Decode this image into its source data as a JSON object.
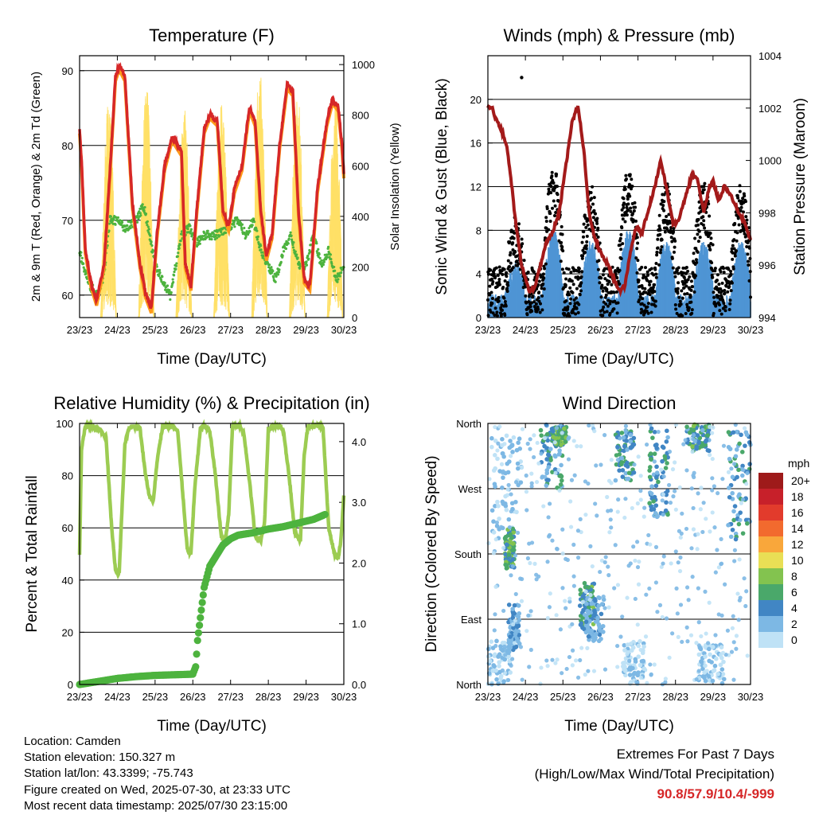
{
  "colors": {
    "temp_red": "#d62728",
    "temp_orange": "#ff9b1a",
    "dewpoint_green": "#4db33e",
    "solar_yellow": "#ffe066",
    "gust_black": "#000000",
    "wind_blue": "#4f95d4",
    "pressure_maroon": "#a31a1a",
    "rh_lightgreen": "#9ccc52",
    "rain_green": "#4db33e",
    "extremes_red": "#d62728"
  },
  "footer": {
    "location": "Location: Camden",
    "elevation": "Station elevation: 150.327 m",
    "latlon": "Station lat/lon: 43.3399; -75.743",
    "created": "Figure created on Wed, 2025-07-30, at 23:33 UTC",
    "latest": "Most recent data timestamp: 2025/07/30 23:15:00"
  },
  "extremes": {
    "title": "Extremes For Past 7 Days",
    "subtitle": "(High/Low/Max Wind/Total Precipitation)",
    "values": "90.8/57.9/10.4/-999"
  },
  "chart_data": [
    {
      "id": "temperature",
      "type": "line",
      "title": "Temperature (F)",
      "xlabel": "Time (Day/UTC)",
      "ylabel": "2m & 9m T (Red, Orange) & 2m Td (Green)",
      "y2label": "Solar Insolation (Yellow)",
      "x_ticks": [
        "23/23",
        "24/23",
        "25/23",
        "26/23",
        "27/23",
        "28/23",
        "29/23",
        "30/23"
      ],
      "xlim": [
        0,
        7
      ],
      "ylim": [
        57,
        92
      ],
      "y_ticks": [
        60,
        70,
        80,
        90
      ],
      "y2lim": [
        0,
        1035
      ],
      "y2_ticks": [
        0,
        200,
        400,
        600,
        800,
        1000
      ],
      "grid": true,
      "series": [
        {
          "role": "air_temperature",
          "x": [
            0,
            0.05,
            0.15,
            0.3,
            0.45,
            0.65,
            0.8,
            0.95,
            1.05,
            1.2,
            1.4,
            1.6,
            1.75,
            1.9,
            2.05,
            2.25,
            2.45,
            2.7,
            2.8,
            2.95,
            3.1,
            3.3,
            3.45,
            3.65,
            3.8,
            3.95,
            4.1,
            4.3,
            4.5,
            4.65,
            4.8,
            4.95,
            5.1,
            5.3,
            5.5,
            5.65,
            5.8,
            5.95,
            6.1,
            6.3,
            6.55,
            6.7,
            6.85,
            6.95,
            7
          ],
          "values": [
            82,
            78,
            66,
            61.5,
            59,
            64,
            76,
            89,
            90.5,
            89,
            72,
            64,
            60,
            58,
            68,
            77,
            81,
            79,
            64,
            61,
            71,
            82,
            84,
            83,
            71,
            69,
            74,
            77,
            85,
            83,
            71,
            65,
            68,
            80,
            88,
            87,
            71,
            62,
            61,
            74,
            83,
            86,
            85,
            80,
            76
          ]
        },
        {
          "role": "dewpoint",
          "x": [
            0,
            0.1,
            0.3,
            0.5,
            0.65,
            0.8,
            1.0,
            1.2,
            1.5,
            1.7,
            2.0,
            2.2,
            2.4,
            2.7,
            2.9,
            3.1,
            3.3,
            3.6,
            3.9,
            4.2,
            4.4,
            4.6,
            4.8,
            5.0,
            5.2,
            5.4,
            5.6,
            5.8,
            6.0,
            6.2,
            6.4,
            6.6,
            6.8,
            7
          ],
          "values": [
            66,
            64,
            61,
            60,
            63,
            70,
            70,
            69,
            70,
            72,
            64,
            62,
            60,
            68,
            69,
            67,
            68,
            68,
            69,
            70,
            68,
            70,
            66,
            64,
            62,
            66,
            68,
            64,
            64,
            68,
            64,
            66,
            62,
            64
          ]
        },
        {
          "role": "solar",
          "days": 7,
          "peaks": [
            880,
            920,
            820,
            860,
            1000,
            880,
            860,
            780
          ]
        }
      ]
    },
    {
      "id": "winds",
      "type": "scatter",
      "title": "Winds (mph) & Pressure (mb)",
      "xlabel": "Time (Day/UTC)",
      "ylabel": "Sonic Wind & Gust (Blue, Black)",
      "y2label": "Station Pressure (Maroon)",
      "x_ticks": [
        "23/23",
        "24/23",
        "25/23",
        "26/23",
        "27/23",
        "28/23",
        "29/23",
        "30/23"
      ],
      "xlim": [
        0,
        7
      ],
      "ylim": [
        0,
        24
      ],
      "y_ticks": [
        0,
        4,
        8,
        12,
        16,
        20
      ],
      "y2lim": [
        994,
        1004
      ],
      "y2_ticks": [
        994,
        996,
        998,
        1000,
        1002,
        1004
      ],
      "grid": true,
      "pressure": {
        "x": [
          0,
          0.1,
          0.2,
          0.35,
          0.5,
          0.6,
          0.75,
          0.9,
          1.0,
          1.1,
          1.25,
          1.4,
          1.55,
          1.7,
          1.9,
          2.1,
          2.25,
          2.4,
          2.55,
          2.7,
          2.85,
          3.0,
          3.2,
          3.35,
          3.5,
          3.65,
          3.8,
          3.95,
          4.1,
          4.25,
          4.45,
          4.6,
          4.75,
          4.95,
          5.1,
          5.25,
          5.45,
          5.6,
          5.75,
          5.9,
          6.0,
          6.15,
          6.3,
          6.5,
          6.7,
          6.85,
          7
        ],
        "values": [
          1002,
          1002.1,
          1001.6,
          1001.2,
          1000.6,
          999.5,
          997.5,
          996,
          995.5,
          995,
          995.2,
          996,
          996.8,
          997.2,
          998,
          1000,
          1001.5,
          1002.1,
          1000.5,
          998,
          997,
          996.5,
          996,
          995.5,
          995,
          995.2,
          996.5,
          997.5,
          997.2,
          998,
          999,
          1000,
          999,
          997.5,
          997.8,
          998.5,
          999.5,
          999.2,
          998,
          999,
          999.2,
          998.5,
          999,
          998.6,
          998,
          997.6,
          997
        ]
      },
      "gust_peak": 22.0
    },
    {
      "id": "humidity",
      "type": "line",
      "title": "Relative Humidity (%) & Precipitation (in)",
      "xlabel": "Time (Day/UTC)",
      "ylabel": "Percent & Total Rainfall",
      "x_ticks": [
        "23/23",
        "24/23",
        "25/23",
        "26/23",
        "27/23",
        "28/23",
        "29/23",
        "30/23"
      ],
      "xlim": [
        0,
        7
      ],
      "ylim": [
        0,
        100
      ],
      "y_ticks": [
        0,
        20,
        40,
        60,
        80,
        100
      ],
      "y2lim": [
        0,
        4.3
      ],
      "y2_ticks": [
        "0.0",
        "1.0",
        "2.0",
        "3.0",
        "4.0"
      ],
      "grid": true,
      "series": [
        {
          "role": "relative_humidity",
          "x": [
            0,
            0.05,
            0.15,
            0.3,
            0.5,
            0.7,
            0.85,
            0.95,
            1.0,
            1.05,
            1.2,
            1.3,
            1.45,
            1.6,
            1.75,
            1.85,
            1.95,
            2.05,
            2.2,
            2.3,
            2.45,
            2.6,
            2.75,
            2.85,
            2.95,
            3.05,
            3.2,
            3.3,
            3.45,
            3.6,
            3.75,
            3.85,
            3.95,
            4.05,
            4.25,
            4.35,
            4.5,
            4.65,
            4.8,
            4.9,
            5.0,
            5.15,
            5.3,
            5.4,
            5.55,
            5.7,
            5.85,
            5.95,
            6.05,
            6.2,
            6.35,
            6.45,
            6.6,
            6.75,
            6.85,
            6.92,
            7
          ],
          "values": [
            50,
            90,
            99,
            99,
            98,
            95,
            60,
            44,
            42,
            43,
            92,
            98,
            99,
            98,
            80,
            72,
            70,
            85,
            99,
            99,
            99,
            97,
            70,
            52,
            50,
            75,
            98,
            99,
            97,
            80,
            57,
            54,
            65,
            99,
            99,
            96,
            78,
            57,
            55,
            62,
            98,
            99,
            99,
            97,
            80,
            58,
            55,
            88,
            99,
            99,
            99,
            98,
            60,
            50,
            48,
            55,
            72
          ]
        },
        {
          "role": "cumulative_rain",
          "x": [
            0,
            0.3,
            0.6,
            1.0,
            1.5,
            2.0,
            2.5,
            3.0,
            3.08,
            3.12,
            3.2,
            3.3,
            3.45,
            3.6,
            3.8,
            4.0,
            4.2,
            4.6,
            5.0,
            5.4,
            5.8,
            6.2,
            6.5
          ],
          "values": [
            0,
            0.03,
            0.06,
            0.1,
            0.13,
            0.15,
            0.16,
            0.17,
            0.3,
            0.7,
            1.1,
            1.6,
            1.95,
            2.1,
            2.3,
            2.4,
            2.46,
            2.5,
            2.56,
            2.6,
            2.66,
            2.72,
            2.8
          ]
        }
      ]
    },
    {
      "id": "wind_direction",
      "type": "scatter",
      "title": "Wind Direction",
      "xlabel": "Time (Day/UTC)",
      "ylabel": "Direction (Colored By Speed)",
      "x_ticks": [
        "23/23",
        "24/23",
        "25/23",
        "26/23",
        "27/23",
        "28/23",
        "29/23",
        "30/23"
      ],
      "xlim": [
        0,
        7
      ],
      "ylim": [
        0,
        360
      ],
      "y_ticks": [
        "North",
        "East",
        "South",
        "West",
        "North"
      ],
      "grid": true,
      "legend": {
        "title": "mph",
        "placement": "right",
        "labels": [
          "20+",
          "18",
          "16",
          "14",
          "12",
          "10",
          "8",
          "6",
          "4",
          "2",
          "0"
        ],
        "colors": [
          "#9e1a1a",
          "#c7202a",
          "#e23b2c",
          "#f26a2e",
          "#f9a73b",
          "#e9df55",
          "#83c34f",
          "#4aa86a",
          "#4186c4",
          "#7db8e4",
          "#bfe2f6"
        ]
      },
      "clusters": [
        {
          "x": [
            0.0,
            0.6
          ],
          "dir": [
            0,
            60
          ],
          "speed": [
            0,
            2
          ]
        },
        {
          "x": [
            0.1,
            0.9
          ],
          "dir": [
            200,
            350
          ],
          "speed": [
            0,
            3
          ]
        },
        {
          "x": [
            0.45,
            0.7
          ],
          "dir": [
            160,
            215
          ],
          "speed": [
            3,
            9
          ]
        },
        {
          "x": [
            0.55,
            0.85
          ],
          "dir": [
            45,
            110
          ],
          "speed": [
            1,
            4
          ]
        },
        {
          "x": [
            1.4,
            2.0
          ],
          "dir": [
            270,
            360
          ],
          "speed": [
            1,
            7
          ]
        },
        {
          "x": [
            1.7,
            2.1
          ],
          "dir": [
            330,
            355
          ],
          "speed": [
            4,
            8
          ]
        },
        {
          "x": [
            2.45,
            2.85
          ],
          "dir": [
            70,
            140
          ],
          "speed": [
            3,
            8
          ]
        },
        {
          "x": [
            2.6,
            3.1
          ],
          "dir": [
            60,
            120
          ],
          "speed": [
            1,
            4
          ]
        },
        {
          "x": [
            3.4,
            3.9
          ],
          "dir": [
            280,
            350
          ],
          "speed": [
            2,
            7
          ]
        },
        {
          "x": [
            3.6,
            4.2
          ],
          "dir": [
            0,
            60
          ],
          "speed": [
            0,
            2
          ]
        },
        {
          "x": [
            4.3,
            4.8
          ],
          "dir": [
            230,
            355
          ],
          "speed": [
            2,
            6
          ]
        },
        {
          "x": [
            5.3,
            5.9
          ],
          "dir": [
            320,
            360
          ],
          "speed": [
            2,
            8
          ]
        },
        {
          "x": [
            5.6,
            6.3
          ],
          "dir": [
            0,
            55
          ],
          "speed": [
            0,
            2
          ]
        },
        {
          "x": [
            6.4,
            7.0
          ],
          "dir": [
            200,
            350
          ],
          "speed": [
            1,
            7
          ]
        }
      ]
    }
  ]
}
